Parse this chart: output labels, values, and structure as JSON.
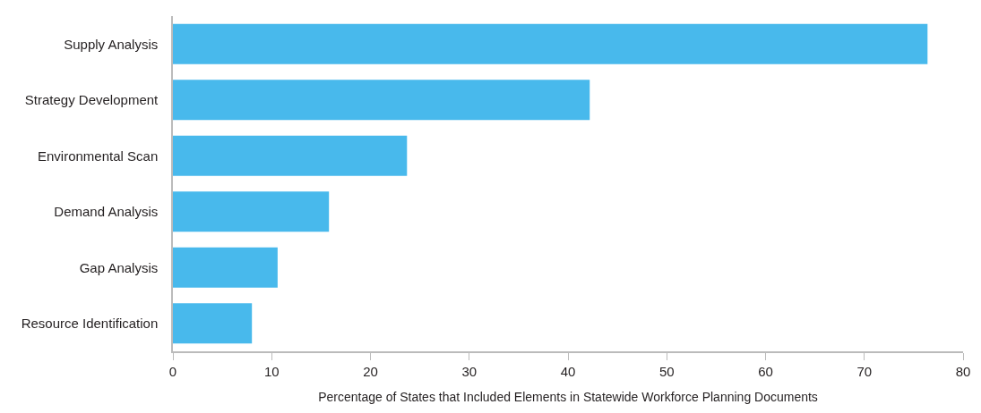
{
  "chart_data": {
    "type": "bar",
    "orientation": "horizontal",
    "xlabel": "Percentage of States that Included Elements in Statewide Workforce Planning Documents",
    "categories": [
      "Supply Analysis",
      "Strategy Development",
      "Environmental Scan",
      "Demand Analysis",
      "Gap Analysis",
      "Resource Identification"
    ],
    "values": [
      76.4,
      42.2,
      23.7,
      15.8,
      10.6,
      8.0
    ],
    "color": "#48b9ec",
    "xlim": [
      0,
      80
    ],
    "xticks": [
      0,
      10,
      20,
      30,
      40,
      50,
      60,
      70,
      80
    ],
    "grid": false
  }
}
